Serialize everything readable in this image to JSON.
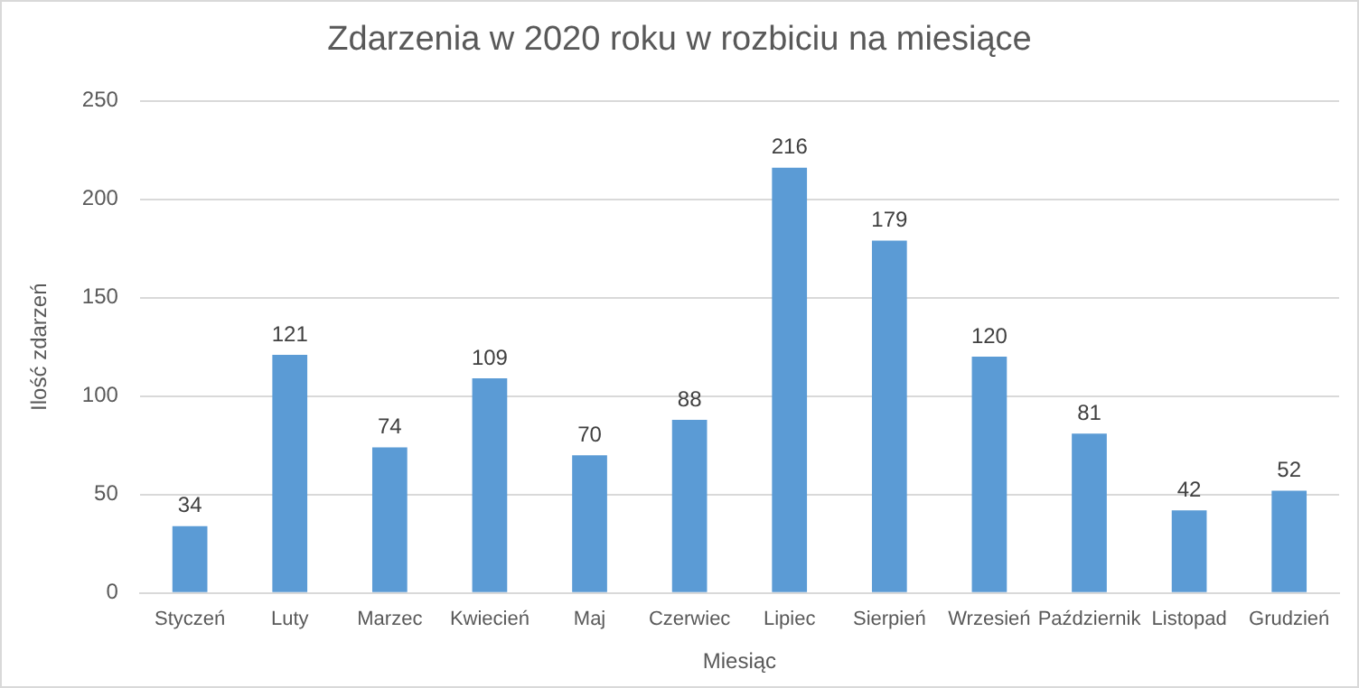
{
  "chart_data": {
    "type": "bar",
    "title": "Zdarzenia w 2020 roku w rozbiciu na miesiące",
    "xlabel": "Miesiąc",
    "ylabel": "Ilość zdarzeń",
    "categories": [
      "Styczeń",
      "Luty",
      "Marzec",
      "Kwiecień",
      "Maj",
      "Czerwiec",
      "Lipiec",
      "Sierpień",
      "Wrzesień",
      "Październik",
      "Listopad",
      "Grudzień"
    ],
    "values": [
      34,
      121,
      74,
      109,
      70,
      88,
      216,
      179,
      120,
      81,
      42,
      52
    ],
    "color": "#5b9bd5",
    "ylim": [
      0,
      250
    ],
    "yticks": [
      0,
      50,
      100,
      150,
      200,
      250
    ],
    "grid": "y",
    "legend": false,
    "data_labels": true
  }
}
